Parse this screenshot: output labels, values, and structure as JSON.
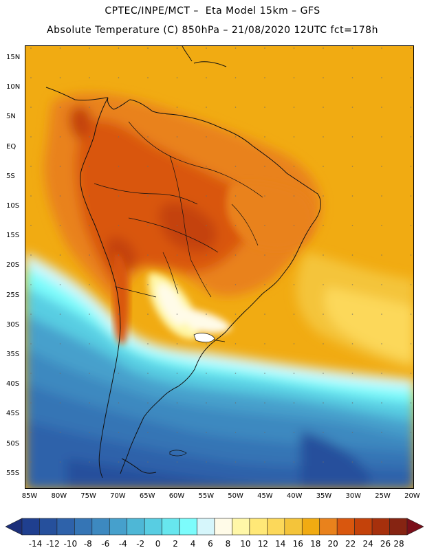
{
  "header": {
    "line1": "CPTEC/INPE/MCT –  Eta Model 15km – GFS",
    "line2": "Absolute Temperature (C) 850hPa – 21/08/2020 12UTC fct=178h"
  },
  "map": {
    "lat_labels": [
      "15N",
      "10N",
      "5N",
      "EQ",
      "5S",
      "10S",
      "15S",
      "20S",
      "25S",
      "30S",
      "35S",
      "40S",
      "45S",
      "50S",
      "55S"
    ],
    "lon_labels": [
      "85W",
      "80W",
      "75W",
      "70W",
      "65W",
      "60W",
      "55W",
      "50W",
      "45W",
      "40W",
      "35W",
      "30W",
      "25W",
      "20W"
    ],
    "bounds": {
      "lon_min": -85,
      "lon_max": -20,
      "lat_min": -58,
      "lat_max": 17
    }
  },
  "colorbar": {
    "labels": [
      "-14",
      "-12",
      "-10",
      "-8",
      "-6",
      "-4",
      "-2",
      "0",
      "2",
      "4",
      "6",
      "8",
      "10",
      "12",
      "14",
      "16",
      "18",
      "20",
      "22",
      "24",
      "26",
      "28"
    ],
    "colors": [
      "#1f3f8f",
      "#26509c",
      "#2e62aa",
      "#3575b5",
      "#3d89c0",
      "#46a0cc",
      "#4eb7d6",
      "#58cde2",
      "#67e6ee",
      "#7cfcfc",
      "#d6f6fb",
      "#fffbe8",
      "#fff7a8",
      "#ffe877",
      "#fcd85a",
      "#f4c43a",
      "#f1ab12",
      "#e9821c",
      "#d9570e",
      "#c4420a",
      "#a6300c",
      "#862412"
    ],
    "under_color": "#1c2f7a",
    "over_color": "#7a0f1a"
  }
}
